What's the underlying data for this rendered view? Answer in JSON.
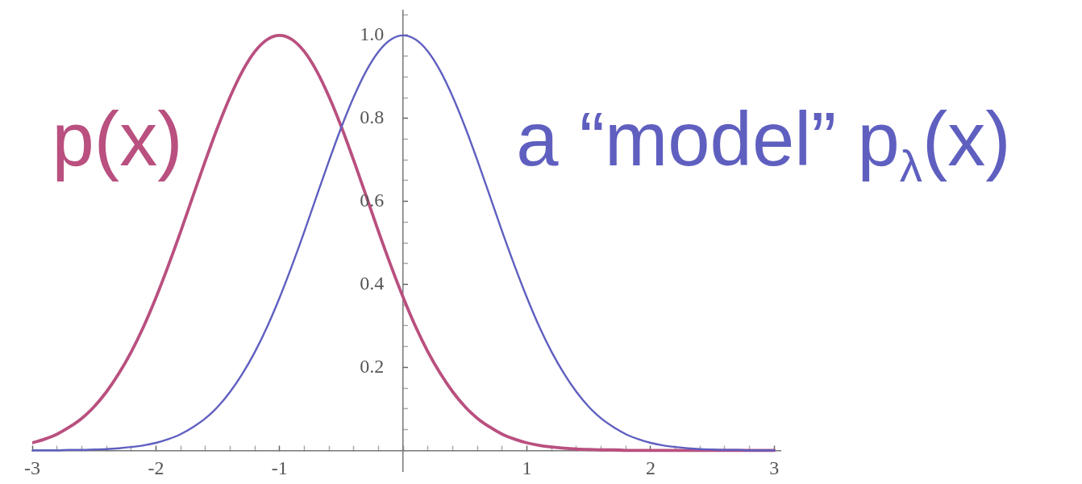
{
  "chart_data": {
    "type": "line",
    "x": [
      -3,
      -2.9,
      -2.8,
      -2.7,
      -2.6,
      -2.5,
      -2.4,
      -2.3,
      -2.2,
      -2.1,
      -2,
      -1.9,
      -1.8,
      -1.7,
      -1.6,
      -1.5,
      -1.4,
      -1.3,
      -1.2,
      -1.1,
      -1,
      -0.9,
      -0.8,
      -0.7,
      -0.6,
      -0.5,
      -0.4,
      -0.3,
      -0.2,
      -0.1,
      0,
      0.1,
      0.2,
      0.3,
      0.4,
      0.5,
      0.6,
      0.7,
      0.8,
      0.9,
      1,
      1.1,
      1.2,
      1.3,
      1.4,
      1.5,
      1.6,
      1.7,
      1.8,
      1.9,
      2,
      2.1,
      2.2,
      2.3,
      2.4,
      2.5,
      2.6,
      2.7,
      2.8,
      2.9,
      3
    ],
    "xlim": [
      -3,
      3.05
    ],
    "ylim": [
      -0.05,
      1.06
    ],
    "xticks": [
      -3,
      {
        "value": -2.8,
        "label": null
      },
      {
        "value": -2.6,
        "label": null
      },
      {
        "value": -2.4,
        "label": null
      },
      {
        "value": -2.2,
        "label": null
      },
      -2,
      {
        "value": -1.8,
        "label": null
      },
      {
        "value": -1.6,
        "label": null
      },
      {
        "value": -1.4,
        "label": null
      },
      {
        "value": -1.2,
        "label": null
      },
      -1,
      {
        "value": -0.8,
        "label": null
      },
      {
        "value": -0.6,
        "label": null
      },
      {
        "value": -0.4,
        "label": null
      },
      {
        "value": -0.2,
        "label": null
      },
      {
        "value": 0,
        "label": null
      },
      {
        "value": 0.2,
        "label": null
      },
      {
        "value": 0.4,
        "label": null
      },
      {
        "value": 0.6,
        "label": null
      },
      {
        "value": 0.8,
        "label": null
      },
      1,
      {
        "value": 1.2,
        "label": null
      },
      {
        "value": 1.4,
        "label": null
      },
      {
        "value": 1.6,
        "label": null
      },
      {
        "value": 1.8,
        "label": null
      },
      2,
      {
        "value": 2.2,
        "label": null
      },
      {
        "value": 2.4,
        "label": null
      },
      {
        "value": 2.6,
        "label": null
      },
      {
        "value": 2.8,
        "label": null
      },
      3
    ],
    "yticks": [
      {
        "value": 0.05,
        "label": null
      },
      {
        "value": 0.1,
        "label": null
      },
      {
        "value": 0.15,
        "label": null
      },
      0.2,
      {
        "value": 0.25,
        "label": null
      },
      {
        "value": 0.3,
        "label": null
      },
      {
        "value": 0.35,
        "label": null
      },
      0.4,
      {
        "value": 0.45,
        "label": null
      },
      {
        "value": 0.5,
        "label": null
      },
      {
        "value": 0.55,
        "label": null
      },
      0.6,
      {
        "value": 0.65,
        "label": null
      },
      {
        "value": 0.7,
        "label": null
      },
      {
        "value": 0.75,
        "label": null
      },
      0.8,
      {
        "value": 0.85,
        "label": null
      },
      {
        "value": 0.9,
        "label": null
      },
      {
        "value": 0.95,
        "label": null
      },
      {
        "value": 1,
        "label": "1.0"
      },
      {
        "value": 1.05,
        "label": null
      }
    ],
    "series": [
      {
        "name": "p(x)",
        "color": "#b9507f",
        "values": [
          0.018,
          0.027,
          0.039,
          0.056,
          0.077,
          0.105,
          0.141,
          0.185,
          0.237,
          0.298,
          0.368,
          0.445,
          0.527,
          0.613,
          0.698,
          0.779,
          0.852,
          0.914,
          0.961,
          0.99,
          1.0,
          0.99,
          0.961,
          0.914,
          0.852,
          0.779,
          0.698,
          0.613,
          0.527,
          0.445,
          0.368,
          0.298,
          0.237,
          0.185,
          0.141,
          0.105,
          0.077,
          0.056,
          0.039,
          0.027,
          0.018,
          0.012,
          0.008,
          0.005,
          0.003,
          0.002,
          0.001,
          0.001,
          0,
          0,
          0,
          0,
          0,
          0,
          0,
          0,
          0,
          0,
          0,
          0,
          0
        ]
      },
      {
        "name": "a “model” p$_{λ}$(x)",
        "color": "#5f5fc0",
        "values": [
          0,
          0,
          0,
          0.001,
          0.001,
          0.002,
          0.003,
          0.005,
          0.008,
          0.012,
          0.018,
          0.027,
          0.039,
          0.056,
          0.077,
          0.105,
          0.141,
          0.185,
          0.237,
          0.298,
          0.368,
          0.445,
          0.527,
          0.613,
          0.698,
          0.779,
          0.852,
          0.914,
          0.961,
          0.99,
          1.0,
          0.99,
          0.961,
          0.914,
          0.852,
          0.779,
          0.698,
          0.613,
          0.527,
          0.445,
          0.368,
          0.298,
          0.237,
          0.185,
          0.141,
          0.105,
          0.077,
          0.056,
          0.039,
          0.027,
          0.018,
          0.012,
          0.008,
          0.005,
          0.003,
          0.002,
          0.001,
          0.001,
          0,
          0,
          0
        ]
      }
    ]
  }
}
